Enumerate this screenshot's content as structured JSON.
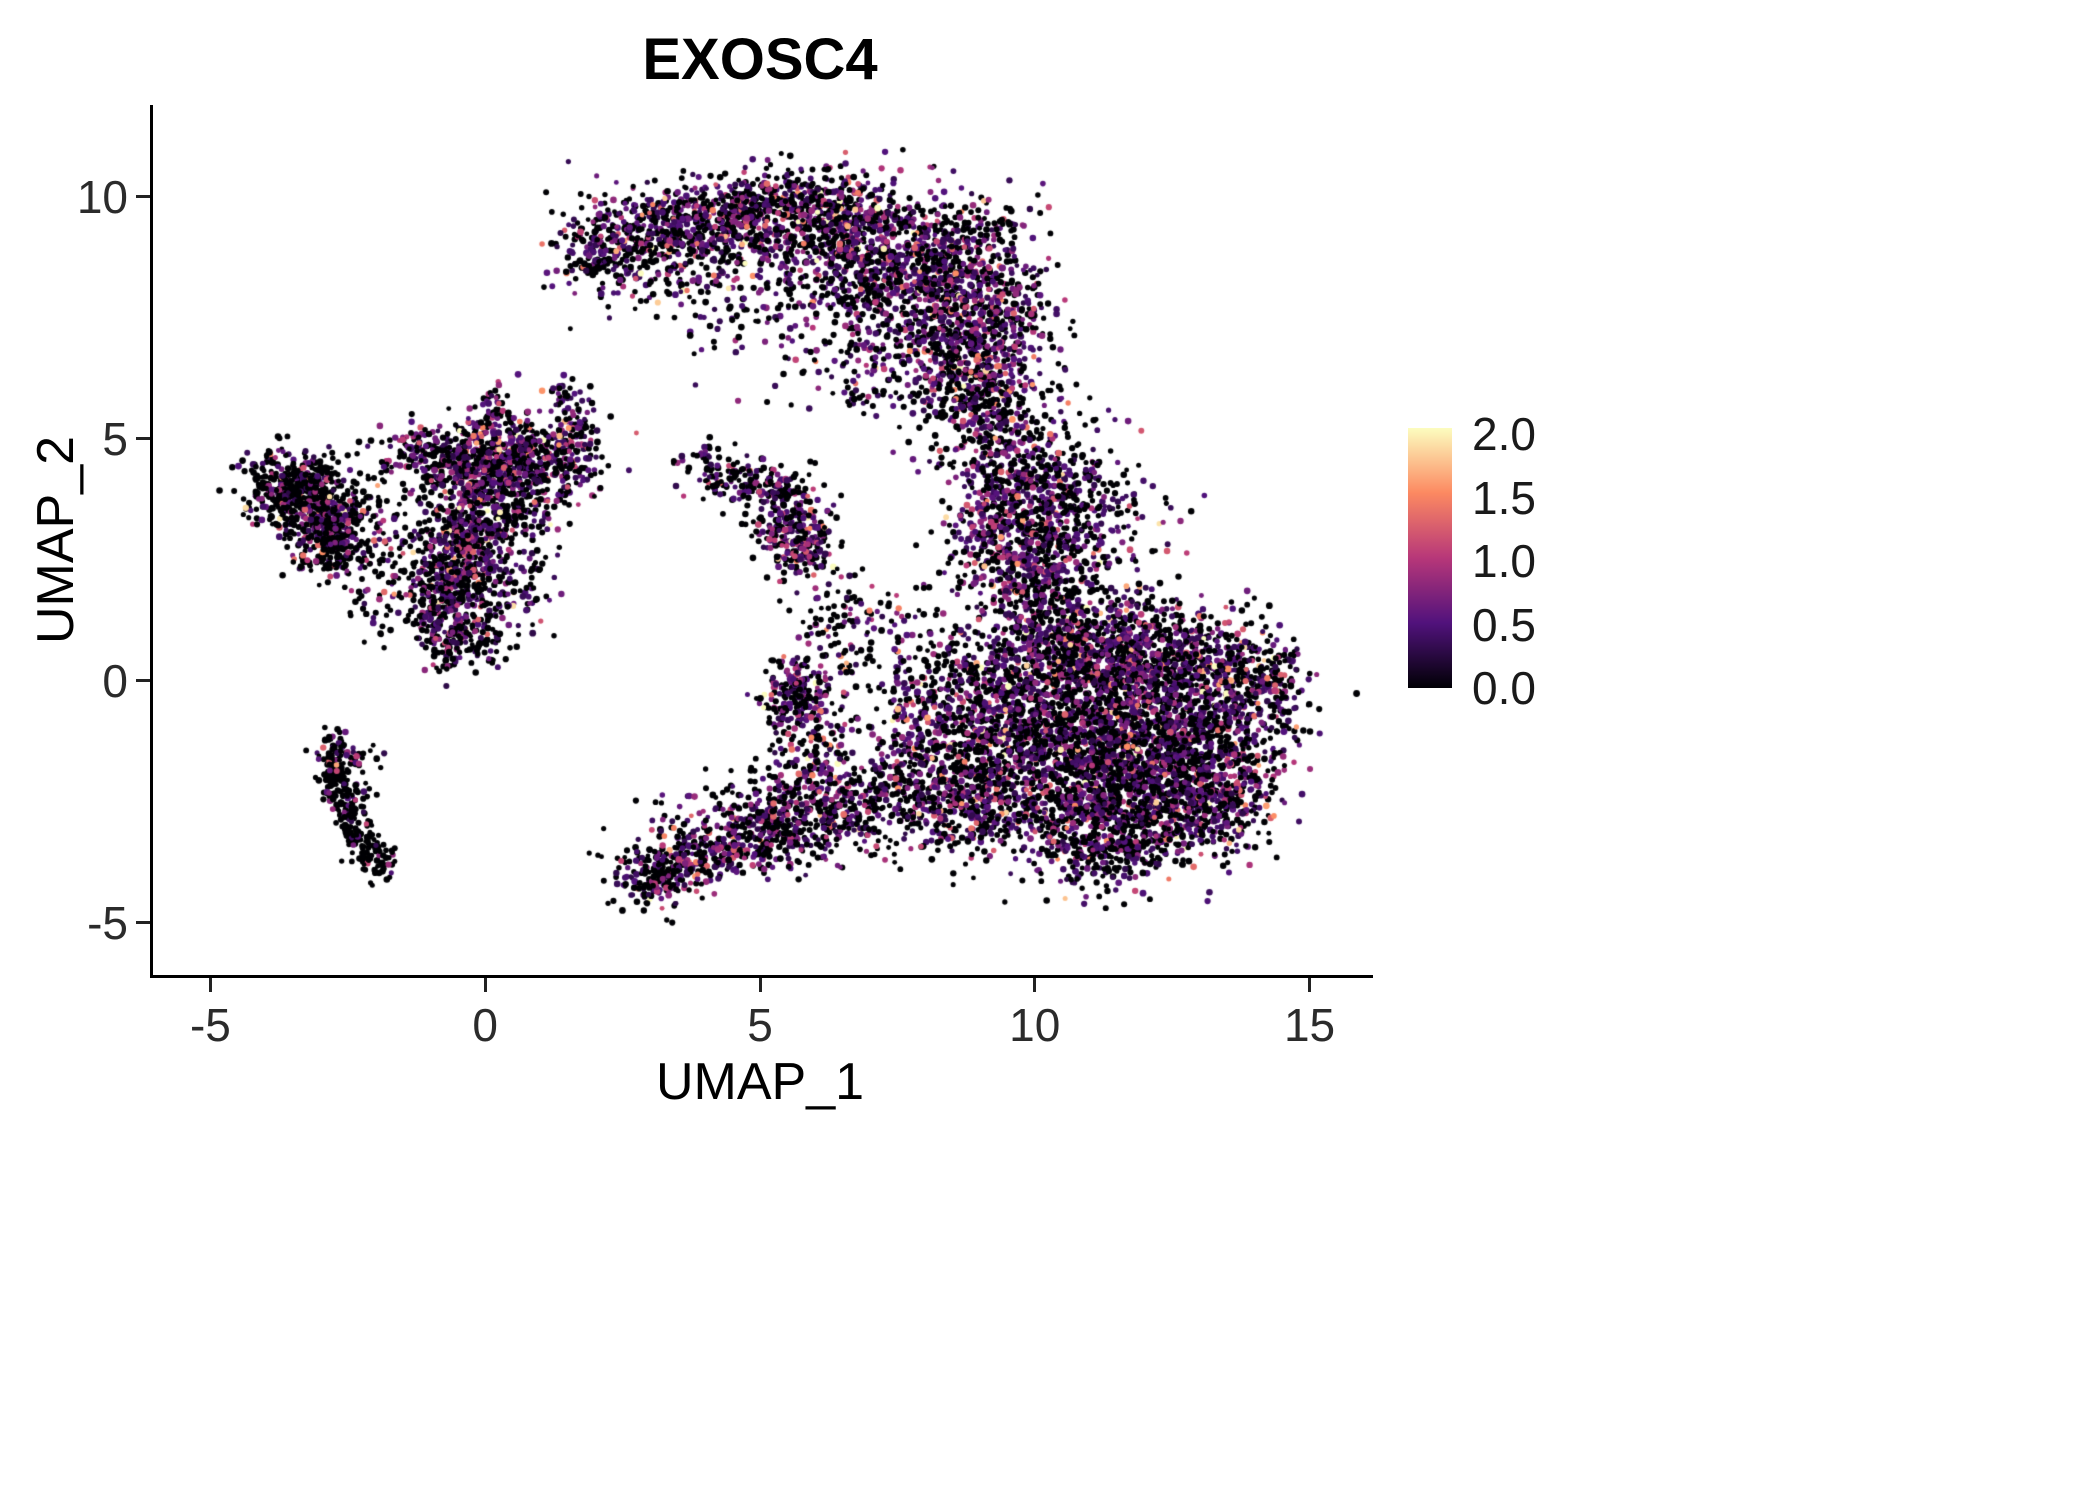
{
  "title": "EXOSC4",
  "axes": {
    "x": {
      "label": "UMAP_1",
      "ticks": [
        -5,
        0,
        5,
        10,
        15
      ],
      "tick_labels": [
        "-5",
        "0",
        "5",
        "10",
        "15"
      ]
    },
    "y": {
      "label": "UMAP_2",
      "ticks": [
        -5,
        0,
        5,
        10
      ],
      "tick_labels": [
        "-5",
        "0",
        "5",
        "10"
      ]
    }
  },
  "legend": {
    "ticks": [
      {
        "v": 2.0,
        "label": "2.0"
      },
      {
        "v": 1.5,
        "label": "1.5"
      },
      {
        "v": 1.0,
        "label": "1.0"
      },
      {
        "v": 0.5,
        "label": "0.5"
      },
      {
        "v": 0.0,
        "label": "0.0"
      }
    ],
    "min": 0,
    "max": 2.05
  },
  "colormap": [
    [
      0.0,
      "#000004"
    ],
    [
      0.25,
      "#51127c"
    ],
    [
      0.5,
      "#b73779"
    ],
    [
      0.75,
      "#fc8961"
    ],
    [
      1.0,
      "#fcfdbf"
    ]
  ],
  "chart_data": {
    "type": "scatter",
    "title": "EXOSC4",
    "xlabel": "UMAP_1",
    "ylabel": "UMAP_2",
    "xlim": [
      -6.1,
      16.1
    ],
    "ylim": [
      -6.08,
      11.9
    ],
    "grid": false,
    "legend_position": "right",
    "color_scale": {
      "name": "magma",
      "min": 0,
      "max": 2.05
    },
    "point_radius_px": [
      2.4,
      3.4
    ],
    "seed": 1337,
    "density": 0.9,
    "value_distribution": {
      "zero_inflated": true,
      "offset": 0.28,
      "exp_mean": 0.38
    },
    "cluster_fields": [
      "x",
      "y",
      "sx",
      "sy",
      "n",
      "zero_frac"
    ],
    "clusters": [
      [
        1.85,
        8.8,
        0.3,
        0.3,
        90,
        0.5
      ],
      [
        2.5,
        8.9,
        0.5,
        0.4,
        160,
        0.5
      ],
      [
        3.3,
        9.3,
        0.6,
        0.45,
        260,
        0.5
      ],
      [
        4.4,
        9.6,
        0.7,
        0.5,
        340,
        0.48
      ],
      [
        5.6,
        9.7,
        0.8,
        0.5,
        420,
        0.48
      ],
      [
        6.8,
        9.2,
        0.8,
        0.6,
        480,
        0.45
      ],
      [
        7.8,
        8.5,
        0.7,
        0.7,
        480,
        0.45
      ],
      [
        8.5,
        7.5,
        0.6,
        0.8,
        420,
        0.45
      ],
      [
        9.0,
        6.4,
        0.5,
        0.7,
        330,
        0.45
      ],
      [
        9.4,
        7.8,
        0.45,
        0.8,
        220,
        0.45
      ],
      [
        9.0,
        9.3,
        0.5,
        0.4,
        80,
        0.5
      ],
      [
        5.0,
        8.4,
        1.2,
        0.7,
        130,
        0.55
      ],
      [
        3.6,
        8.1,
        0.8,
        0.5,
        70,
        0.6
      ],
      [
        2.2,
        9.6,
        0.5,
        0.35,
        60,
        0.5
      ],
      [
        6.6,
        7.6,
        0.7,
        0.6,
        150,
        0.5
      ],
      [
        6.9,
        6.3,
        0.5,
        0.5,
        90,
        0.5
      ],
      [
        8.0,
        5.8,
        0.5,
        0.6,
        70,
        0.5
      ],
      [
        9.1,
        5.3,
        0.4,
        0.6,
        160,
        0.45
      ],
      [
        9.3,
        4.4,
        0.45,
        0.5,
        170,
        0.45
      ],
      [
        10.3,
        5.2,
        0.5,
        0.6,
        50,
        0.55
      ],
      [
        9.6,
        3.3,
        0.6,
        0.6,
        380,
        0.45
      ],
      [
        9.9,
        2.2,
        0.7,
        0.6,
        420,
        0.45
      ],
      [
        10.4,
        3.9,
        0.5,
        0.5,
        200,
        0.5
      ],
      [
        11.2,
        3.3,
        0.7,
        0.7,
        130,
        0.55
      ],
      [
        10.8,
        1.4,
        0.6,
        0.5,
        150,
        0.5
      ],
      [
        10.4,
        0.4,
        0.8,
        0.7,
        550,
        0.5
      ],
      [
        11.6,
        0.5,
        0.9,
        0.6,
        560,
        0.5
      ],
      [
        12.8,
        0.2,
        0.8,
        0.6,
        520,
        0.5
      ],
      [
        13.9,
        0.0,
        0.5,
        0.5,
        240,
        0.5
      ],
      [
        10.5,
        -1.2,
        0.9,
        0.7,
        620,
        0.5
      ],
      [
        11.8,
        -1.3,
        0.9,
        0.7,
        620,
        0.5
      ],
      [
        13.1,
        -1.4,
        0.8,
        0.6,
        480,
        0.5
      ],
      [
        10.8,
        -2.6,
        0.9,
        0.6,
        560,
        0.5
      ],
      [
        12.2,
        -2.6,
        0.8,
        0.6,
        460,
        0.5
      ],
      [
        11.3,
        -3.5,
        0.7,
        0.4,
        260,
        0.55
      ],
      [
        13.4,
        -2.4,
        0.5,
        0.5,
        220,
        0.5
      ],
      [
        9.3,
        -0.5,
        0.5,
        0.8,
        300,
        0.5
      ],
      [
        9.0,
        -1.8,
        0.5,
        0.6,
        260,
        0.5
      ],
      [
        8.6,
        -2.8,
        0.5,
        0.5,
        200,
        0.5
      ],
      [
        8.2,
        -0.3,
        0.5,
        0.7,
        190,
        0.5
      ],
      [
        7.8,
        -1.5,
        0.5,
        0.7,
        190,
        0.5
      ],
      [
        7.4,
        -2.4,
        0.5,
        0.5,
        150,
        0.5
      ],
      [
        7.2,
        0.8,
        0.6,
        0.8,
        110,
        0.55
      ],
      [
        5.6,
        -0.3,
        0.35,
        0.45,
        240,
        0.45
      ],
      [
        6.4,
        1.3,
        0.4,
        0.6,
        70,
        0.55
      ],
      [
        6.0,
        -1.2,
        0.35,
        0.6,
        90,
        0.55
      ],
      [
        3.1,
        -4.0,
        0.4,
        0.35,
        240,
        0.55
      ],
      [
        3.9,
        -3.6,
        0.5,
        0.3,
        150,
        0.5
      ],
      [
        4.7,
        -3.3,
        0.6,
        0.35,
        170,
        0.5
      ],
      [
        5.5,
        -3.0,
        0.6,
        0.4,
        190,
        0.5
      ],
      [
        6.3,
        -2.7,
        0.6,
        0.4,
        210,
        0.5
      ],
      [
        4.6,
        -2.6,
        0.8,
        0.4,
        80,
        0.6
      ],
      [
        5.9,
        -1.9,
        0.5,
        0.4,
        100,
        0.55
      ],
      [
        4.5,
        4.15,
        0.5,
        0.25,
        100,
        0.55
      ],
      [
        5.3,
        3.9,
        0.3,
        0.3,
        80,
        0.5
      ],
      [
        5.5,
        3.2,
        0.35,
        0.45,
        210,
        0.45
      ],
      [
        5.8,
        2.8,
        0.3,
        0.3,
        110,
        0.45
      ],
      [
        4.2,
        4.5,
        0.3,
        0.2,
        40,
        0.55
      ],
      [
        -3.8,
        4.0,
        0.35,
        0.4,
        240,
        0.7
      ],
      [
        -3.2,
        3.9,
        0.4,
        0.4,
        240,
        0.7
      ],
      [
        -3.05,
        3.2,
        0.35,
        0.45,
        280,
        0.72
      ],
      [
        -2.7,
        2.8,
        0.3,
        0.3,
        140,
        0.7
      ],
      [
        -2.3,
        3.6,
        0.4,
        0.4,
        70,
        0.65
      ],
      [
        -0.8,
        1.3,
        0.3,
        0.5,
        240,
        0.55
      ],
      [
        -0.6,
        2.2,
        0.35,
        0.5,
        240,
        0.55
      ],
      [
        -0.35,
        2.9,
        0.4,
        0.5,
        240,
        0.5
      ],
      [
        0.0,
        4.3,
        0.5,
        0.55,
        330,
        0.5
      ],
      [
        0.6,
        4.6,
        0.5,
        0.4,
        240,
        0.5
      ],
      [
        -0.5,
        4.6,
        0.5,
        0.4,
        200,
        0.5
      ],
      [
        -1.2,
        4.7,
        0.4,
        0.3,
        120,
        0.55
      ],
      [
        0.3,
        3.5,
        0.5,
        0.5,
        210,
        0.5
      ],
      [
        1.2,
        4.4,
        0.4,
        0.4,
        150,
        0.5
      ],
      [
        1.5,
        5.2,
        0.25,
        0.4,
        70,
        0.5
      ],
      [
        1.4,
        5.7,
        0.2,
        0.25,
        40,
        0.5
      ],
      [
        -1.5,
        2.6,
        0.5,
        0.6,
        100,
        0.6
      ],
      [
        0.3,
        1.9,
        0.4,
        0.4,
        100,
        0.55
      ],
      [
        0.1,
        5.5,
        0.25,
        0.35,
        60,
        0.5
      ],
      [
        -1.8,
        1.5,
        0.4,
        0.5,
        50,
        0.65
      ],
      [
        -0.2,
        0.9,
        0.35,
        0.35,
        90,
        0.55
      ],
      [
        -2.85,
        -1.6,
        0.15,
        0.25,
        60,
        0.8
      ],
      [
        -2.7,
        -2.1,
        0.15,
        0.3,
        70,
        0.85
      ],
      [
        -2.5,
        -2.7,
        0.15,
        0.3,
        70,
        0.85
      ],
      [
        -2.3,
        -3.2,
        0.15,
        0.3,
        60,
        0.85
      ],
      [
        -2.0,
        -3.7,
        0.2,
        0.25,
        60,
        0.85
      ],
      [
        -2.55,
        -1.5,
        0.25,
        0.2,
        40,
        0.6
      ],
      [
        5.0,
        7.2,
        1.0,
        0.8,
        30,
        0.6
      ]
    ]
  }
}
